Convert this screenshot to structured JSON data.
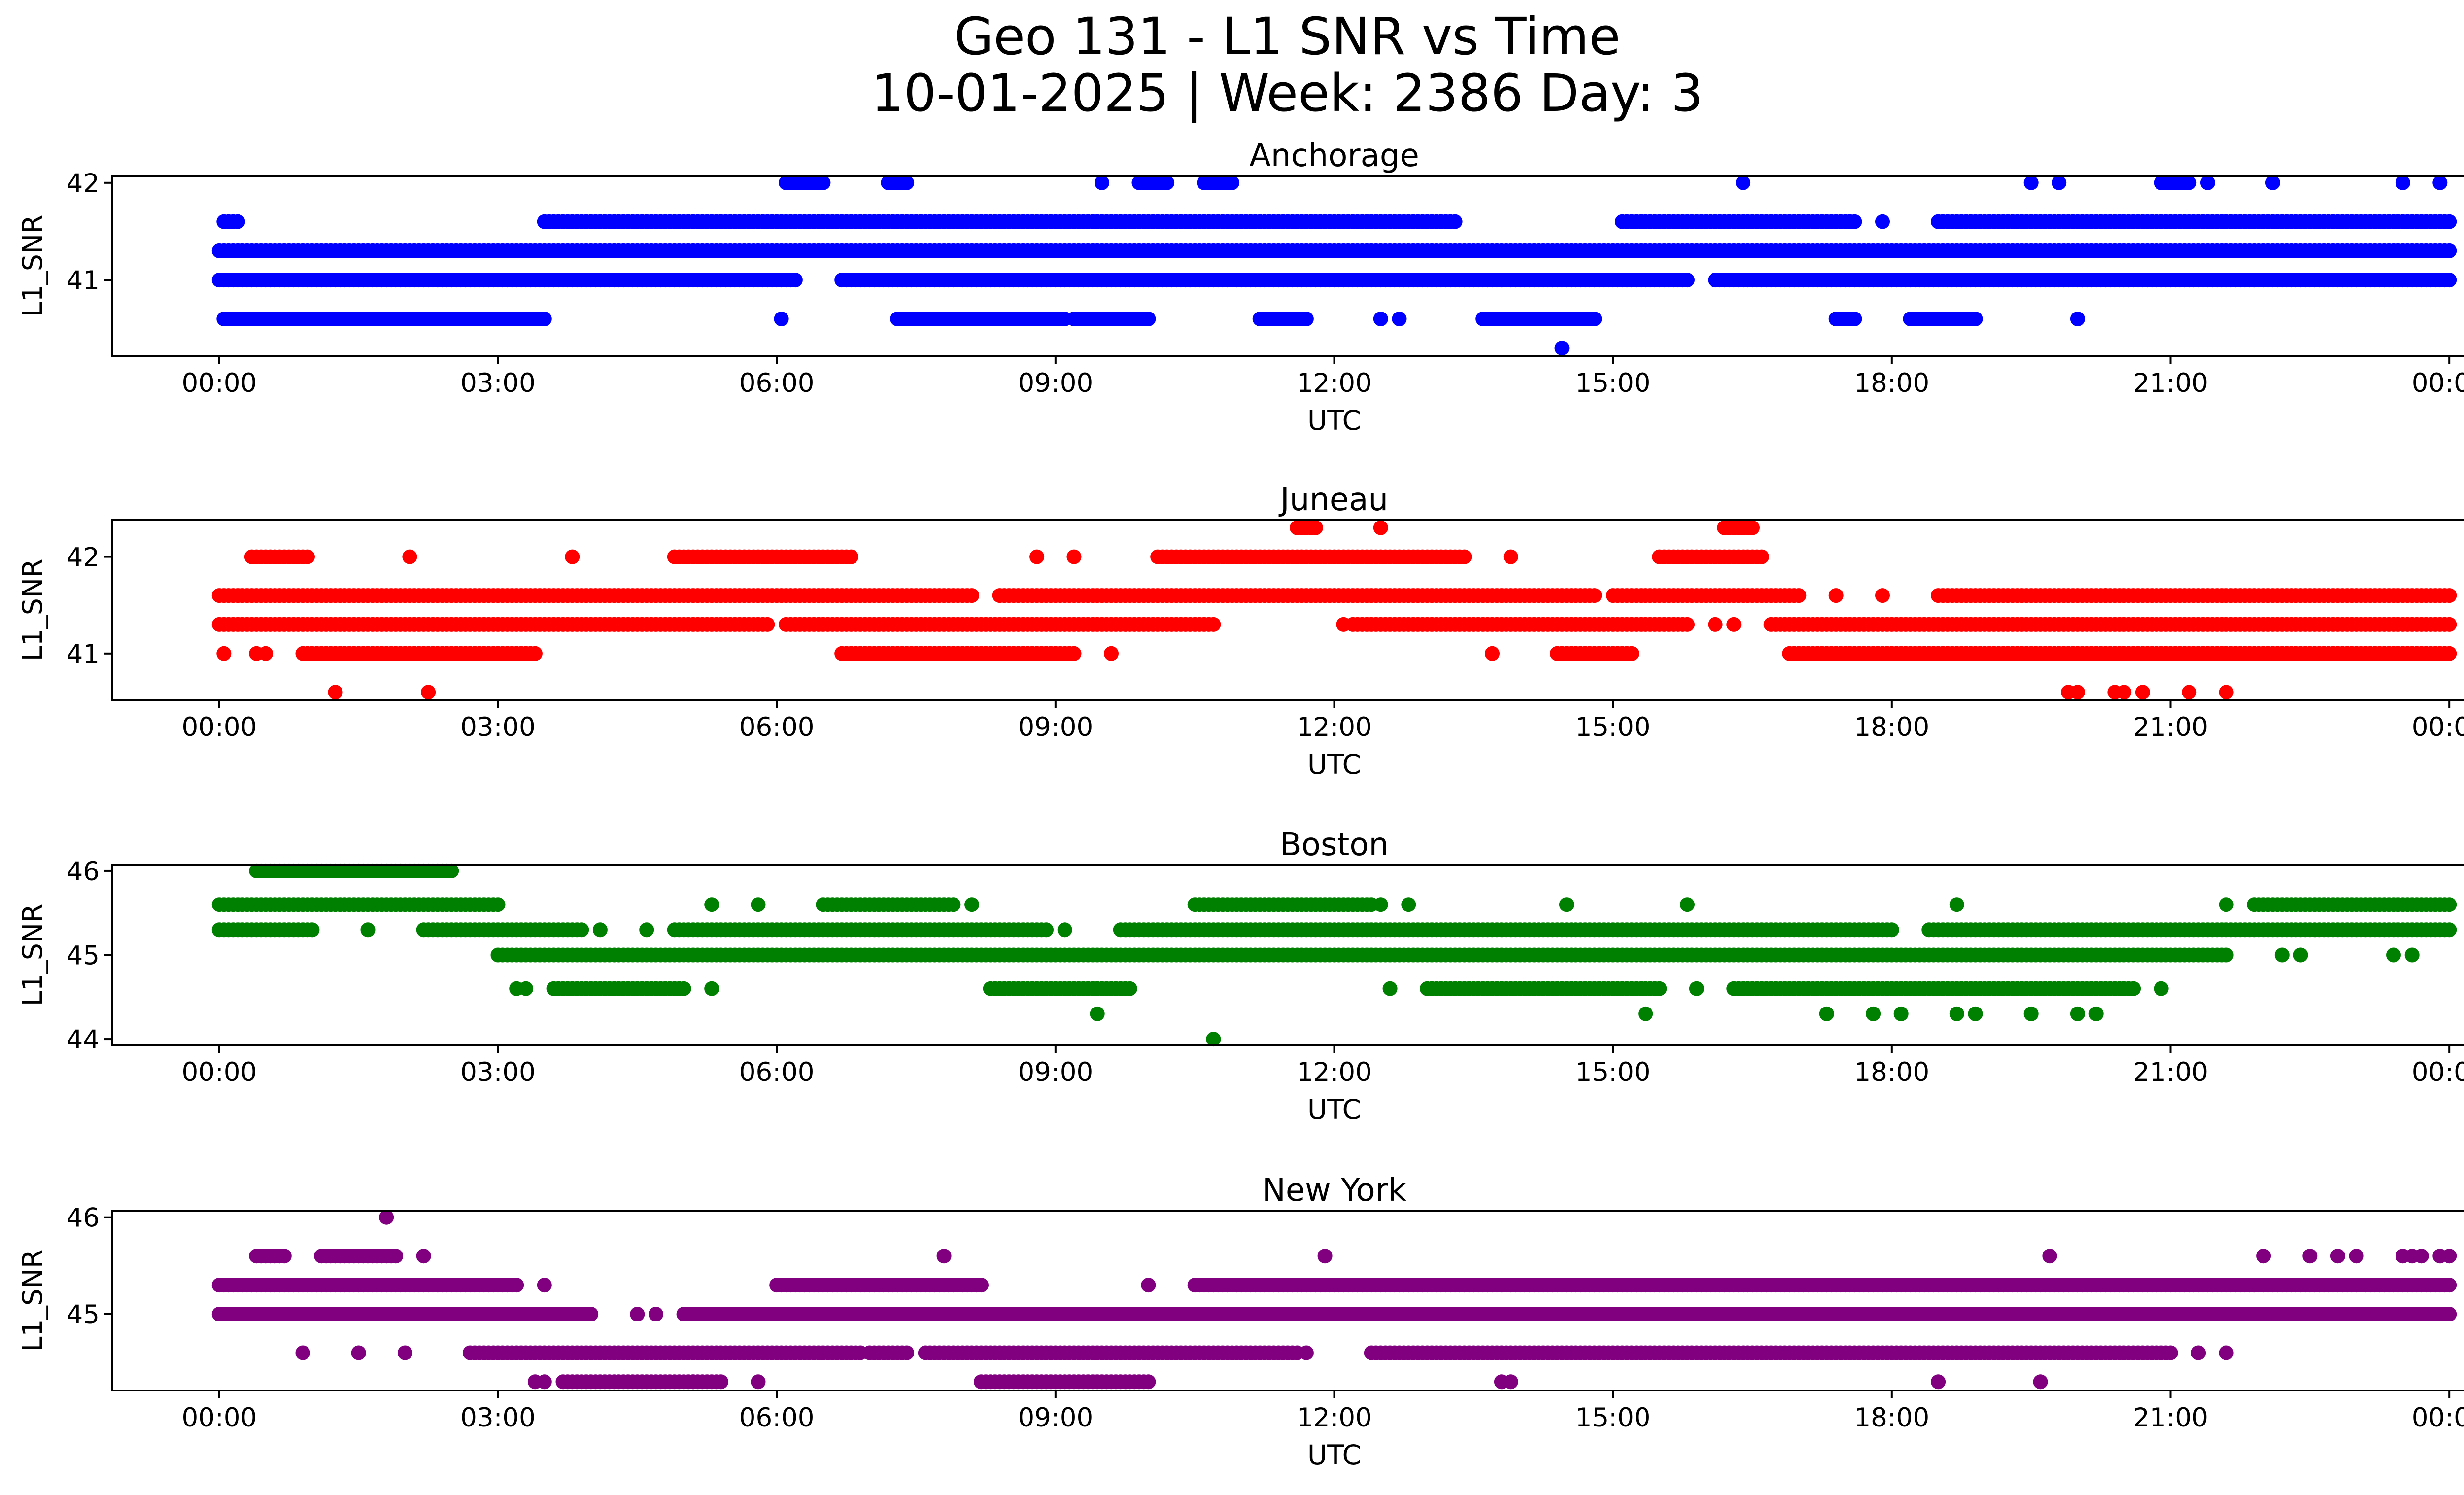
{
  "figure": {
    "title_line1": "Geo 131 - L1 SNR vs Time",
    "title_line2": "10-01-2025 | Week: 2386 Day: 3"
  },
  "chart_data": [
    {
      "type": "scatter",
      "title": "Anchorage",
      "xlabel": "UTC",
      "ylabel": "L1_SNR",
      "color": "#0000ff",
      "x_ticks": [
        "00:00",
        "03:00",
        "06:00",
        "09:00",
        "12:00",
        "15:00",
        "18:00",
        "21:00",
        "00:00"
      ],
      "y_ticks": [
        41,
        42
      ],
      "xlim_hours": [
        -1.15,
        25.15
      ],
      "ylim": [
        40.22,
        42.07
      ],
      "levels": [
        {
          "y": 41.3,
          "segments": [
            [
              0.0,
              24.0
            ]
          ]
        },
        {
          "y": 41.0,
          "segments": [
            [
              0.0,
              6.2
            ],
            [
              6.7,
              15.8
            ],
            [
              16.1,
              24.0
            ]
          ]
        },
        {
          "y": 41.6,
          "segments": [
            [
              0.05,
              0.2
            ],
            [
              3.5,
              13.3
            ],
            [
              15.1,
              17.6
            ],
            [
              18.5,
              24.0
            ]
          ]
        },
        {
          "y": 40.6,
          "segments": [
            [
              0.05,
              3.5
            ],
            [
              7.3,
              9.1
            ],
            [
              9.2,
              10.0
            ],
            [
              11.2,
              11.7
            ],
            [
              13.6,
              14.8
            ],
            [
              17.4,
              17.6
            ],
            [
              18.2,
              18.9
            ]
          ]
        },
        {
          "y": 42.0,
          "segments": [
            [
              6.1,
              6.5
            ],
            [
              7.2,
              7.4
            ],
            [
              9.9,
              10.2
            ],
            [
              10.6,
              10.9
            ],
            [
              20.9,
              21.2
            ]
          ]
        }
      ],
      "points": [
        {
          "x": 6.05,
          "y": 40.6
        },
        {
          "x": 12.5,
          "y": 40.6
        },
        {
          "x": 12.7,
          "y": 40.6
        },
        {
          "x": 20.0,
          "y": 40.6
        },
        {
          "x": 9.2,
          "y": 40.6
        },
        {
          "x": 14.45,
          "y": 40.3
        },
        {
          "x": 9.5,
          "y": 42.0
        },
        {
          "x": 16.4,
          "y": 42.0
        },
        {
          "x": 19.5,
          "y": 42.0
        },
        {
          "x": 19.8,
          "y": 42.0
        },
        {
          "x": 21.4,
          "y": 42.0
        },
        {
          "x": 22.1,
          "y": 42.0
        },
        {
          "x": 23.5,
          "y": 42.0
        },
        {
          "x": 23.9,
          "y": 42.0
        },
        {
          "x": 17.9,
          "y": 41.6
        },
        {
          "x": 18.5,
          "y": 41.6
        }
      ]
    },
    {
      "type": "scatter",
      "title": "Juneau",
      "xlabel": "UTC",
      "ylabel": "L1_SNR",
      "color": "#ff0000",
      "x_ticks": [
        "00:00",
        "03:00",
        "06:00",
        "09:00",
        "12:00",
        "15:00",
        "18:00",
        "21:00",
        "00:00"
      ],
      "y_ticks": [
        41,
        42
      ],
      "xlim_hours": [
        -1.15,
        25.15
      ],
      "ylim": [
        40.52,
        42.38
      ],
      "levels": [
        {
          "y": 41.6,
          "segments": [
            [
              0.0,
              8.1
            ],
            [
              8.4,
              14.8
            ],
            [
              15.0,
              17.0
            ],
            [
              18.5,
              24.0
            ]
          ]
        },
        {
          "y": 41.3,
          "segments": [
            [
              0.0,
              5.9
            ],
            [
              6.1,
              10.7
            ],
            [
              12.2,
              15.8
            ],
            [
              16.7,
              24.0
            ]
          ]
        },
        {
          "y": 41.0,
          "segments": [
            [
              0.9,
              3.4
            ],
            [
              6.7,
              9.2
            ],
            [
              14.4,
              15.2
            ],
            [
              16.9,
              24.0
            ]
          ]
        },
        {
          "y": 42.0,
          "segments": [
            [
              0.35,
              0.95
            ],
            [
              4.9,
              6.8
            ],
            [
              10.1,
              13.4
            ],
            [
              15.5,
              16.6
            ]
          ]
        },
        {
          "y": 42.3,
          "segments": [
            [
              11.6,
              11.8
            ],
            [
              16.2,
              16.5
            ]
          ]
        }
      ],
      "points": [
        {
          "x": 0.05,
          "y": 41.0
        },
        {
          "x": 0.4,
          "y": 41.0
        },
        {
          "x": 0.5,
          "y": 41.0
        },
        {
          "x": 9.6,
          "y": 41.0
        },
        {
          "x": 13.7,
          "y": 41.0
        },
        {
          "x": 1.25,
          "y": 40.6
        },
        {
          "x": 2.25,
          "y": 40.6
        },
        {
          "x": 19.9,
          "y": 40.6
        },
        {
          "x": 20.0,
          "y": 40.6
        },
        {
          "x": 20.4,
          "y": 40.6
        },
        {
          "x": 20.5,
          "y": 40.6
        },
        {
          "x": 20.7,
          "y": 40.6
        },
        {
          "x": 21.2,
          "y": 40.6
        },
        {
          "x": 21.6,
          "y": 40.6
        },
        {
          "x": 2.05,
          "y": 42.0
        },
        {
          "x": 3.8,
          "y": 42.0
        },
        {
          "x": 8.8,
          "y": 42.0
        },
        {
          "x": 9.2,
          "y": 42.0
        },
        {
          "x": 13.9,
          "y": 42.0
        },
        {
          "x": 12.5,
          "y": 42.3
        },
        {
          "x": 12.1,
          "y": 41.3
        },
        {
          "x": 16.1,
          "y": 41.3
        },
        {
          "x": 16.3,
          "y": 41.3
        },
        {
          "x": 17.4,
          "y": 41.6
        },
        {
          "x": 17.9,
          "y": 41.6
        },
        {
          "x": 20.3,
          "y": 41.6
        }
      ]
    },
    {
      "type": "scatter",
      "title": "Boston",
      "xlabel": "UTC",
      "ylabel": "L1_SNR",
      "color": "#008000",
      "x_ticks": [
        "00:00",
        "03:00",
        "06:00",
        "09:00",
        "12:00",
        "15:00",
        "18:00",
        "21:00",
        "00:00"
      ],
      "y_ticks": [
        44,
        45,
        46
      ],
      "xlim_hours": [
        -1.15,
        25.15
      ],
      "ylim": [
        43.93,
        46.07
      ],
      "levels": [
        {
          "y": 45.6,
          "segments": [
            [
              0.0,
              3.0
            ],
            [
              6.5,
              7.9
            ],
            [
              10.5,
              12.4
            ],
            [
              21.9,
              24.0
            ]
          ]
        },
        {
          "y": 45.3,
          "segments": [
            [
              0.0,
              1.0
            ],
            [
              2.2,
              3.9
            ],
            [
              4.9,
              8.9
            ],
            [
              9.7,
              18.0
            ],
            [
              18.4,
              24.0
            ]
          ]
        },
        {
          "y": 45.0,
          "segments": [
            [
              3.0,
              21.6
            ]
          ]
        },
        {
          "y": 46.0,
          "segments": [
            [
              0.4,
              2.5
            ]
          ]
        },
        {
          "y": 44.6,
          "segments": [
            [
              3.6,
              5.0
            ],
            [
              8.3,
              9.8
            ],
            [
              13.0,
              15.5
            ],
            [
              16.3,
              20.6
            ]
          ]
        }
      ],
      "points": [
        {
          "x": 1.6,
          "y": 45.3
        },
        {
          "x": 4.1,
          "y": 45.3
        },
        {
          "x": 4.6,
          "y": 45.3
        },
        {
          "x": 9.1,
          "y": 45.3
        },
        {
          "x": 5.3,
          "y": 45.6
        },
        {
          "x": 5.8,
          "y": 45.6
        },
        {
          "x": 8.1,
          "y": 45.6
        },
        {
          "x": 12.5,
          "y": 45.6
        },
        {
          "x": 12.8,
          "y": 45.6
        },
        {
          "x": 14.5,
          "y": 45.6
        },
        {
          "x": 15.8,
          "y": 45.6
        },
        {
          "x": 18.7,
          "y": 45.6
        },
        {
          "x": 21.6,
          "y": 45.6
        },
        {
          "x": 3.2,
          "y": 44.6
        },
        {
          "x": 3.3,
          "y": 44.6
        },
        {
          "x": 5.3,
          "y": 44.6
        },
        {
          "x": 12.6,
          "y": 44.6
        },
        {
          "x": 15.9,
          "y": 44.6
        },
        {
          "x": 20.9,
          "y": 44.6
        },
        {
          "x": 9.45,
          "y": 44.3
        },
        {
          "x": 15.35,
          "y": 44.3
        },
        {
          "x": 17.3,
          "y": 44.3
        },
        {
          "x": 17.8,
          "y": 44.3
        },
        {
          "x": 18.1,
          "y": 44.3
        },
        {
          "x": 18.7,
          "y": 44.3
        },
        {
          "x": 18.9,
          "y": 44.3
        },
        {
          "x": 19.5,
          "y": 44.3
        },
        {
          "x": 20.0,
          "y": 44.3
        },
        {
          "x": 20.2,
          "y": 44.3
        },
        {
          "x": 10.7,
          "y": 44.0
        },
        {
          "x": 22.2,
          "y": 45.0
        },
        {
          "x": 22.4,
          "y": 45.0
        },
        {
          "x": 23.4,
          "y": 45.0
        },
        {
          "x": 23.6,
          "y": 45.0
        }
      ]
    },
    {
      "type": "scatter",
      "title": "New York",
      "xlabel": "UTC",
      "ylabel": "L1_SNR",
      "color": "#800080",
      "x_ticks": [
        "00:00",
        "03:00",
        "06:00",
        "09:00",
        "12:00",
        "15:00",
        "18:00",
        "21:00",
        "00:00"
      ],
      "y_ticks": [
        45,
        46
      ],
      "xlim_hours": [
        -1.15,
        25.15
      ],
      "ylim": [
        44.21,
        46.07
      ],
      "levels": [
        {
          "y": 45.3,
          "segments": [
            [
              0.0,
              3.2
            ],
            [
              6.0,
              8.2
            ],
            [
              10.5,
              24.0
            ]
          ]
        },
        {
          "y": 45.0,
          "segments": [
            [
              0.0,
              4.0
            ],
            [
              5.0,
              24.0
            ]
          ]
        },
        {
          "y": 44.6,
          "segments": [
            [
              2.7,
              6.9
            ],
            [
              7.0,
              7.4
            ],
            [
              7.6,
              11.6
            ],
            [
              12.4,
              21.0
            ]
          ]
        },
        {
          "y": 44.3,
          "segments": [
            [
              3.7,
              5.4
            ],
            [
              8.2,
              10.0
            ]
          ]
        },
        {
          "y": 45.6,
          "segments": [
            [
              0.4,
              0.7
            ],
            [
              1.1,
              1.9
            ]
          ]
        }
      ],
      "points": [
        {
          "x": 3.5,
          "y": 45.3
        },
        {
          "x": 10.0,
          "y": 45.3
        },
        {
          "x": 4.5,
          "y": 45.0
        },
        {
          "x": 4.7,
          "y": 45.0
        },
        {
          "x": 0.9,
          "y": 44.6
        },
        {
          "x": 1.5,
          "y": 44.6
        },
        {
          "x": 2.0,
          "y": 44.6
        },
        {
          "x": 11.7,
          "y": 44.6
        },
        {
          "x": 21.3,
          "y": 44.6
        },
        {
          "x": 21.6,
          "y": 44.6
        },
        {
          "x": 3.4,
          "y": 44.3
        },
        {
          "x": 3.5,
          "y": 44.3
        },
        {
          "x": 5.1,
          "y": 44.3
        },
        {
          "x": 5.8,
          "y": 44.3
        },
        {
          "x": 13.8,
          "y": 44.3
        },
        {
          "x": 13.9,
          "y": 44.3
        },
        {
          "x": 18.5,
          "y": 44.3
        },
        {
          "x": 19.6,
          "y": 44.3
        },
        {
          "x": 1.8,
          "y": 46.0
        },
        {
          "x": 2.2,
          "y": 45.6
        },
        {
          "x": 7.8,
          "y": 45.6
        },
        {
          "x": 11.9,
          "y": 45.6
        },
        {
          "x": 19.7,
          "y": 45.6
        },
        {
          "x": 22.0,
          "y": 45.6
        },
        {
          "x": 22.5,
          "y": 45.6
        },
        {
          "x": 22.8,
          "y": 45.6
        },
        {
          "x": 23.0,
          "y": 45.6
        },
        {
          "x": 23.5,
          "y": 45.6
        },
        {
          "x": 23.6,
          "y": 45.6
        },
        {
          "x": 23.7,
          "y": 45.6
        },
        {
          "x": 23.9,
          "y": 45.6
        },
        {
          "x": 24.0,
          "y": 45.6
        }
      ]
    }
  ]
}
